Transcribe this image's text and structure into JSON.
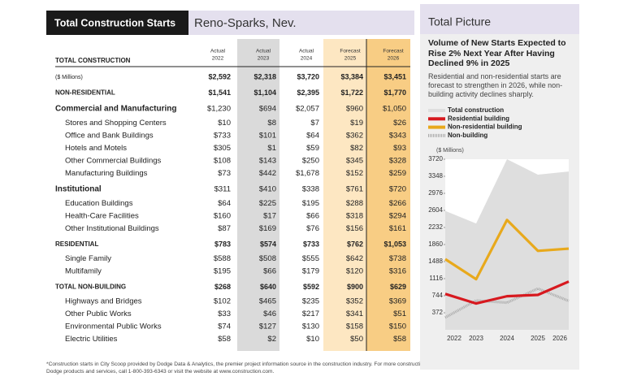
{
  "header": {
    "title": "Total Construction Starts",
    "location": "Reno-Sparks, Nev."
  },
  "table": {
    "section_label": "TOTAL CONSTRUCTION",
    "columns": [
      {
        "kind": "Actual",
        "year": "2022"
      },
      {
        "kind": "Actual",
        "year": "2023"
      },
      {
        "kind": "Actual",
        "year": "2024"
      },
      {
        "kind": "Forecast",
        "year": "2025"
      },
      {
        "kind": "Forecast",
        "year": "2026"
      }
    ],
    "total": {
      "label": "($ Millions)",
      "values": [
        "$2,592",
        "$2,318",
        "$3,720",
        "$3,384",
        "$3,451"
      ]
    },
    "sections": [
      {
        "label": "NON-RESIDENTIAL",
        "values": [
          "$1,541",
          "$1,104",
          "$2,395",
          "$1,722",
          "$1,770"
        ],
        "rows": [
          {
            "label": "Commercial and Manufacturing",
            "values": [
              "$1,230",
              "$694",
              "$2,057",
              "$960",
              "$1,050"
            ],
            "rows": [
              {
                "label": "Stores and Shopping Centers",
                "values": [
                  "$10",
                  "$8",
                  "$7",
                  "$19",
                  "$26"
                ]
              },
              {
                "label": "Office and Bank Buildings",
                "values": [
                  "$733",
                  "$101",
                  "$64",
                  "$362",
                  "$343"
                ]
              },
              {
                "label": "Hotels and Motels",
                "values": [
                  "$305",
                  "$1",
                  "$59",
                  "$82",
                  "$93"
                ]
              },
              {
                "label": "Other Commercial Buildings",
                "values": [
                  "$108",
                  "$143",
                  "$250",
                  "$345",
                  "$328"
                ]
              },
              {
                "label": "Manufacturing Buildings",
                "values": [
                  "$73",
                  "$442",
                  "$1,678",
                  "$152",
                  "$259"
                ]
              }
            ]
          },
          {
            "label": "Institutional",
            "values": [
              "$311",
              "$410",
              "$338",
              "$761",
              "$720"
            ],
            "rows": [
              {
                "label": "Education Buildings",
                "values": [
                  "$64",
                  "$225",
                  "$195",
                  "$288",
                  "$266"
                ]
              },
              {
                "label": "Health-Care Facilities",
                "values": [
                  "$160",
                  "$17",
                  "$66",
                  "$318",
                  "$294"
                ]
              },
              {
                "label": "Other Institutional Buildings",
                "values": [
                  "$87",
                  "$169",
                  "$76",
                  "$156",
                  "$161"
                ]
              }
            ]
          }
        ]
      },
      {
        "label": "RESIDENTIAL",
        "values": [
          "$783",
          "$574",
          "$733",
          "$762",
          "$1,053"
        ],
        "rows": [
          {
            "label": "Single Family",
            "values": [
              "$588",
              "$508",
              "$555",
              "$642",
              "$738"
            ]
          },
          {
            "label": "Multifamily",
            "values": [
              "$195",
              "$66",
              "$179",
              "$120",
              "$316"
            ]
          }
        ]
      },
      {
        "label": "TOTAL NON-BUILDING",
        "values": [
          "$268",
          "$640",
          "$592",
          "$900",
          "$629"
        ],
        "rows": [
          {
            "label": "Highways and Bridges",
            "values": [
              "$102",
              "$465",
              "$235",
              "$352",
              "$369"
            ]
          },
          {
            "label": "Other Public Works",
            "values": [
              "$33",
              "$46",
              "$217",
              "$341",
              "$51"
            ]
          },
          {
            "label": "Environmental Public Works",
            "values": [
              "$74",
              "$127",
              "$130",
              "$158",
              "$150"
            ]
          },
          {
            "label": "Electric Utilities",
            "values": [
              "$58",
              "$2",
              "$10",
              "$50",
              "$58"
            ]
          }
        ]
      }
    ]
  },
  "footnote": [
    "*Construction starts in City Scoop provided by Dodge Data & Analytics, the premier project information source in the construction industry. For more construction starts or general information on",
    "Dodge products and services, call 1-800-393-6343 or visit the website at www.construction.com."
  ],
  "panel_title": "Total Picture",
  "chart_data": {
    "type": "line",
    "title": "Volume of New Starts Expected to Rise 2% Next Year After Having Declined 9% in 2025",
    "subtitle": "Residential and non-residential starts are forecast to strengthen in 2026, while non-building activity declines sharply.",
    "y_label": "($ Millions)",
    "categories": [
      "2022",
      "2023",
      "2024",
      "2025",
      "2026"
    ],
    "series": [
      {
        "name": "Total construction",
        "color": "#dedede",
        "kind": "area",
        "values": [
          2592,
          2318,
          3720,
          3384,
          3451
        ]
      },
      {
        "name": "Residential building",
        "color": "#d7191f",
        "kind": "line",
        "values": [
          783,
          574,
          733,
          762,
          1053
        ]
      },
      {
        "name": "Non-residential building",
        "color": "#e8a91c",
        "kind": "line",
        "values": [
          1541,
          1104,
          2395,
          1722,
          1770
        ]
      },
      {
        "name": "Non-building",
        "color": "#a9a9a9",
        "kind": "dotted",
        "values": [
          268,
          640,
          592,
          900,
          629
        ]
      }
    ],
    "ylim": [
      0,
      3720
    ],
    "yticks": [
      372,
      744,
      1116,
      1488,
      1860,
      2232,
      2604,
      2976,
      3348,
      3720
    ]
  }
}
